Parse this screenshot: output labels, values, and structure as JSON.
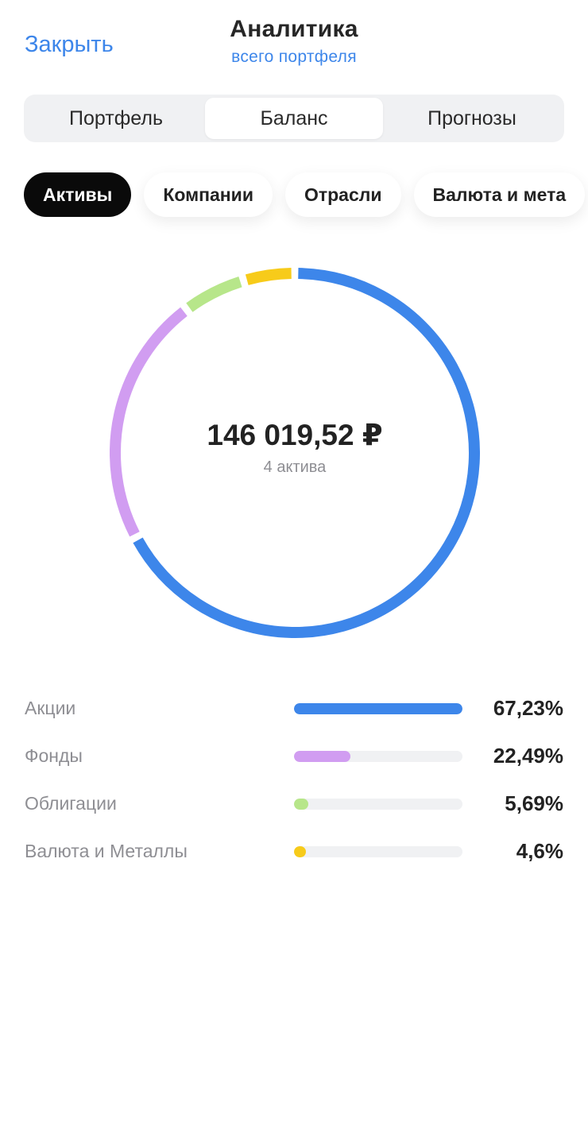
{
  "header": {
    "close_label": "Закрыть",
    "title": "Аналитика",
    "subtitle": "всего портфеля"
  },
  "tabs": [
    {
      "label": "Портфель",
      "active": false
    },
    {
      "label": "Баланс",
      "active": true
    },
    {
      "label": "Прогнозы",
      "active": false
    }
  ],
  "chips": [
    {
      "label": "Активы",
      "active": true
    },
    {
      "label": "Компании",
      "active": false
    },
    {
      "label": "Отрасли",
      "active": false
    },
    {
      "label": "Валюта и мета",
      "active": false
    }
  ],
  "summary": {
    "total": "146 019,52 ₽",
    "asset_count": "4 актива"
  },
  "chart_data": {
    "type": "pie",
    "categories": [
      "Акции",
      "Фонды",
      "Облигации",
      "Валюта и Металлы"
    ],
    "values": [
      67.23,
      22.49,
      5.69,
      4.6
    ],
    "value_labels": [
      "67,23%",
      "22,49%",
      "5,69%",
      "4,6%"
    ],
    "colors": [
      "#3d86ea",
      "#d19df1",
      "#b7e68a",
      "#f7cb1a"
    ]
  }
}
